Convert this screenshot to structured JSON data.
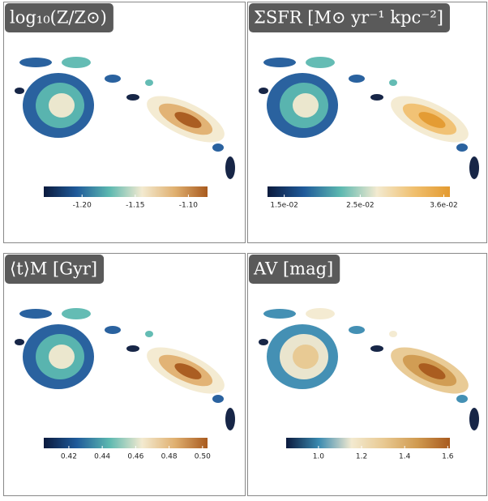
{
  "chart_data": [
    {
      "type": "map",
      "title": "log₁₀(Z/Z⊙)",
      "colormap": [
        "#0b1a3d",
        "#1f5a9a",
        "#5cb8b0",
        "#f3ead0",
        "#e0b070",
        "#a85a1e"
      ],
      "clim": [
        -1.236,
        -1.082
      ],
      "cticks": [
        {
          "value": -1.2,
          "label": "-1.20"
        },
        {
          "value": -1.15,
          "label": "-1.15"
        },
        {
          "value": -1.1,
          "label": "-1.10"
        }
      ]
    },
    {
      "type": "map",
      "title": "ΣSFR [M⊙ yr⁻¹ kpc⁻²]",
      "colormap": [
        "#0b1a3d",
        "#1f5a9a",
        "#5cb8b0",
        "#f3ead0",
        "#f0c070",
        "#e39a30"
      ],
      "clim": [
        0.0128,
        0.0368
      ],
      "cticks": [
        {
          "value": 0.015,
          "label": "1.5e-02"
        },
        {
          "value": 0.025,
          "label": "2.5e-02"
        },
        {
          "value": 0.036,
          "label": "3.6e-02"
        }
      ]
    },
    {
      "type": "map",
      "title": "⟨t⟩M [Gyr]",
      "colormap": [
        "#0b1a3d",
        "#1f5a9a",
        "#5cb8b0",
        "#f3ead0",
        "#e0b070",
        "#a85a1e"
      ],
      "clim": [
        0.405,
        0.503
      ],
      "cticks": [
        0.42,
        0.44,
        0.46,
        0.48,
        {
          "value": 0.5,
          "label": "0.50"
        }
      ]
    },
    {
      "type": "map",
      "title": "AV [mag]",
      "colormap": [
        "#0b1a3d",
        "#3a8ab0",
        "#f3ead0",
        "#e8c890",
        "#d09a50",
        "#a85a1e"
      ],
      "clim": [
        0.85,
        1.61
      ],
      "cticks": [
        {
          "value": 1.0,
          "label": "1.0"
        },
        1.2,
        1.4,
        1.6
      ]
    }
  ]
}
